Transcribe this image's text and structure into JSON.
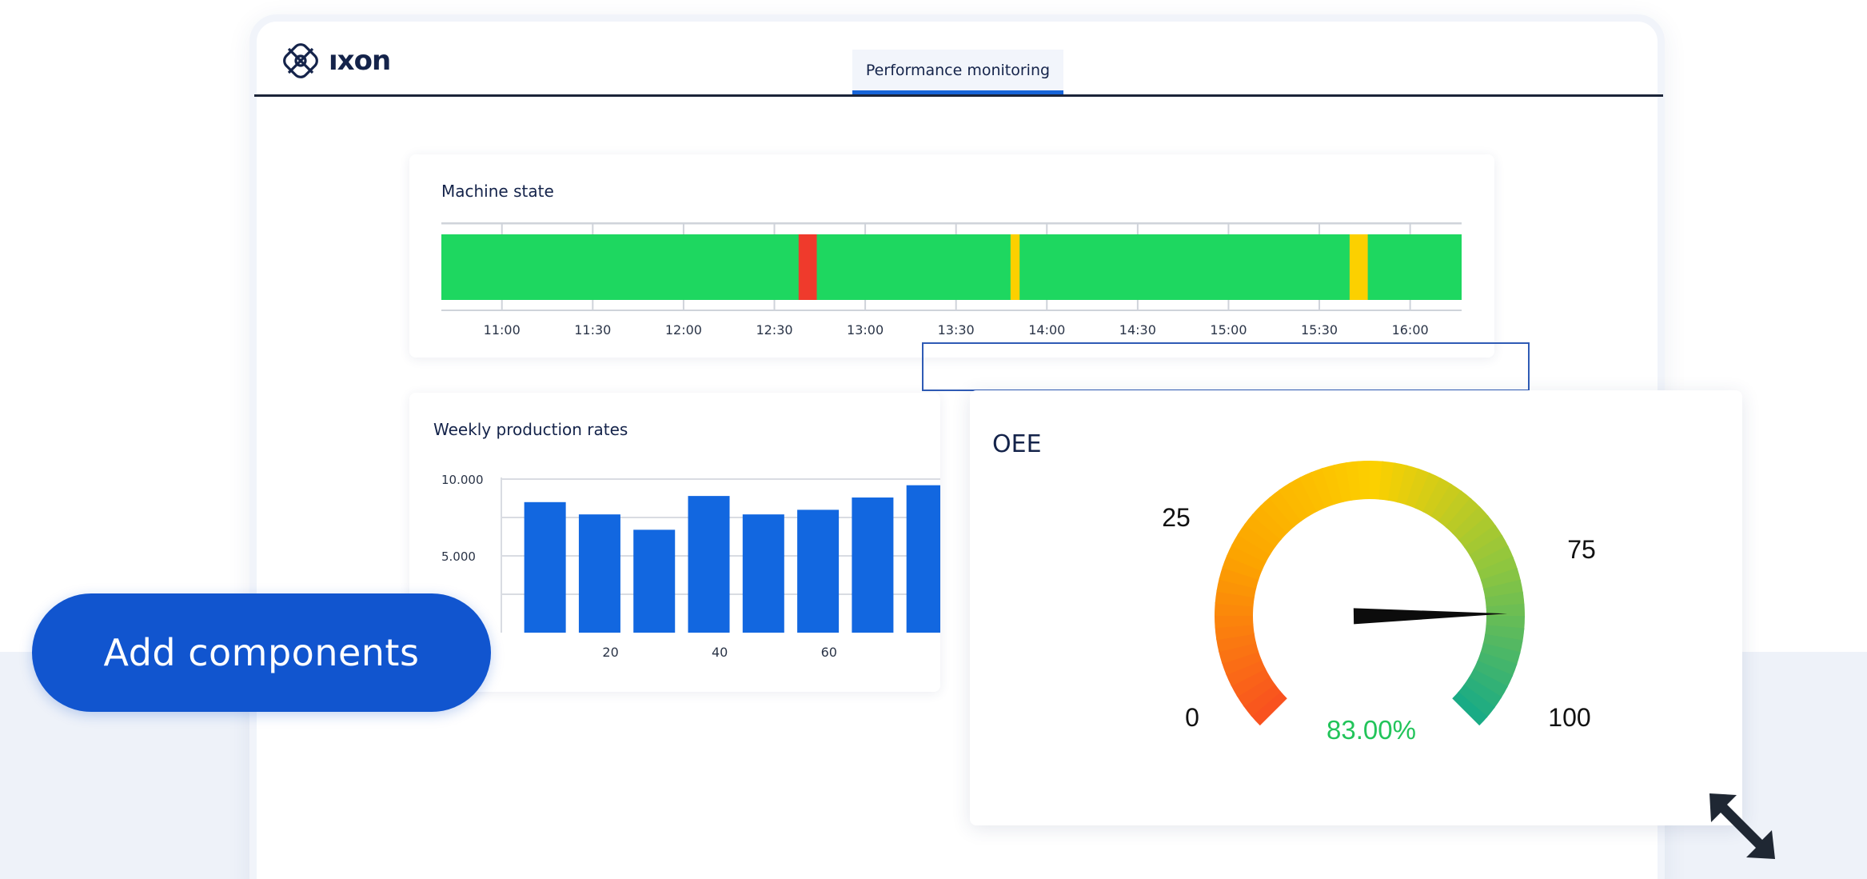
{
  "header": {
    "logo_text": "ıxon",
    "active_tab": "Performance monitoring"
  },
  "machine_state": {
    "title": "Machine state",
    "time_labels": [
      "11:00",
      "11:30",
      "12:00",
      "12:30",
      "13:00",
      "13:30",
      "14:00",
      "14:30",
      "15:00",
      "15:30",
      "16:00"
    ],
    "segments": [
      {
        "start": "10:40",
        "end": "12:38",
        "state": "running",
        "color": "#1ed760"
      },
      {
        "start": "12:38",
        "end": "12:44",
        "state": "stopped",
        "color": "#ef3a2c"
      },
      {
        "start": "12:44",
        "end": "13:48",
        "state": "running",
        "color": "#1ed760"
      },
      {
        "start": "13:48",
        "end": "13:51",
        "state": "idle",
        "color": "#fcd000"
      },
      {
        "start": "13:51",
        "end": "15:40",
        "state": "running",
        "color": "#1ed760"
      },
      {
        "start": "15:40",
        "end": "15:46",
        "state": "idle",
        "color": "#fcd000"
      },
      {
        "start": "15:46",
        "end": "16:17",
        "state": "running",
        "color": "#1ed760"
      }
    ]
  },
  "chart_data": [
    {
      "type": "bar",
      "title": "Weekly production rates",
      "x_ticks": [
        "20",
        "40",
        "60"
      ],
      "y_ticks": [
        "10.000",
        "5.000"
      ],
      "ylim": [
        0,
        10000
      ],
      "x": [
        8,
        18,
        28,
        38,
        48,
        58,
        68,
        78
      ],
      "values": [
        8500,
        7700,
        6700,
        8900,
        7700,
        8000,
        8800,
        9600
      ],
      "grid": true,
      "bar_color": "#1267e0"
    },
    {
      "type": "gauge",
      "title": "OEE",
      "min": 0,
      "max": 100,
      "value": 83,
      "value_label": "83.00%",
      "tick_labels": [
        "0",
        "25",
        "75",
        "100"
      ],
      "colors": [
        "#f9521f",
        "#fca400",
        "#fcd000",
        "#8ec63f",
        "#11a98a"
      ]
    }
  ],
  "actions": {
    "add_components": "Add components"
  },
  "icons": {
    "logo": "ixon-logo-icon",
    "resize": "resize-diagonal-icon"
  }
}
